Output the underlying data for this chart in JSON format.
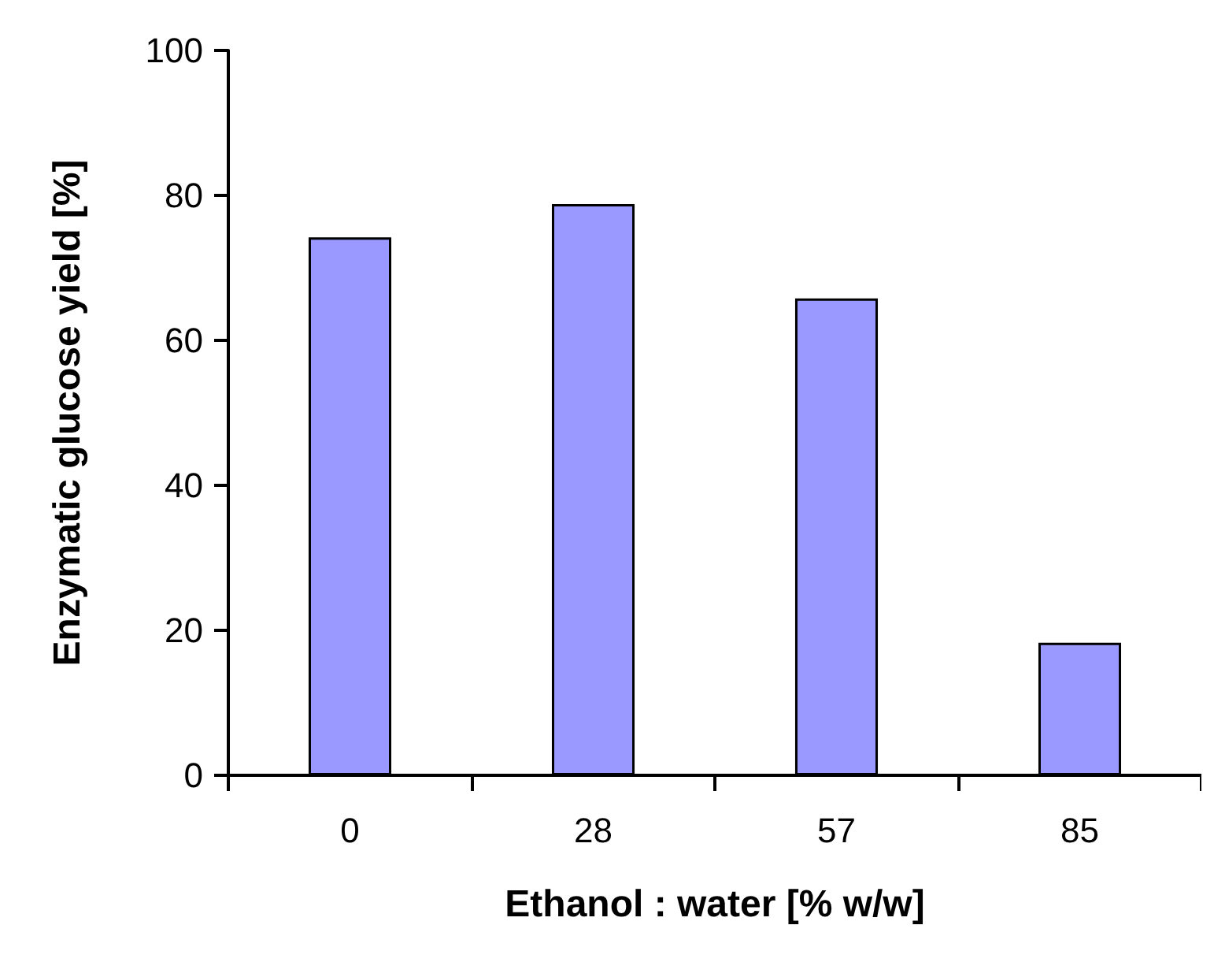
{
  "chart_data": {
    "type": "bar",
    "xlabel": "Ethanol : water [% w/w]",
    "ylabel": "Enzymatic glucose yield [%]",
    "categories": [
      "0",
      "28",
      "57",
      "85"
    ],
    "values": [
      74.2,
      78.8,
      65.8,
      18.3
    ],
    "color": "#9999ff",
    "ylim": [
      0,
      100
    ],
    "yticks": [
      0,
      20,
      40,
      60,
      80,
      100
    ],
    "grid": false
  }
}
